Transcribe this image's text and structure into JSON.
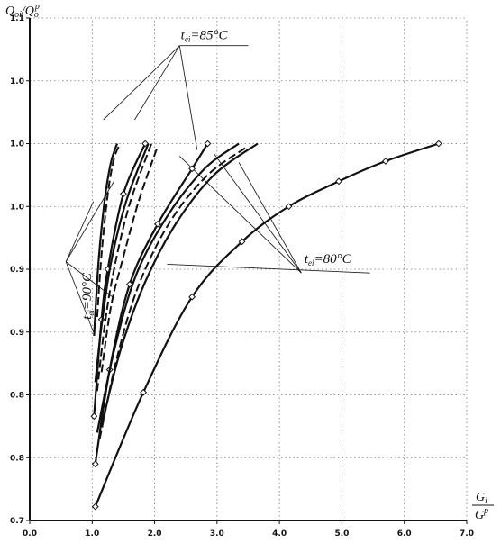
{
  "chart_data": {
    "type": "line",
    "xlabel": {
      "num": "G",
      "num_sub": "i",
      "den": "G",
      "den_sup": "p"
    },
    "ylabel": {
      "num": "Q",
      "num_sub": "oi",
      "den": "Q",
      "den_sub": "o",
      "den_sup": "p"
    },
    "xlim": [
      0,
      7
    ],
    "ylim": [
      0.7,
      1.1
    ],
    "x_ticks": [
      0,
      1,
      2,
      3,
      4,
      5,
      6,
      7
    ],
    "x_tick_labels": [
      "0.0",
      "1.0",
      "2.0",
      "3.0",
      "4.0",
      "5.0",
      "6.0",
      "7.0"
    ],
    "y_ticks": [
      0.7,
      0.75,
      0.8,
      0.85,
      0.9,
      0.95,
      1.0,
      1.05,
      1.1
    ],
    "y_tick_labels": [
      "0.7",
      "0.8",
      "0.8",
      "0.9",
      "0.9",
      "1.0",
      "1.0",
      "1.0",
      "1.1"
    ],
    "grid": true,
    "annotations": [
      {
        "label": "t",
        "sub": "ei",
        "rest": "=85°C",
        "x": 2.42,
        "y": 1.083,
        "rotate": 0
      },
      {
        "label": "t",
        "sub": "ei",
        "rest": "=80°C",
        "x": 4.4,
        "y": 0.905,
        "rotate": 0
      },
      {
        "label": "t",
        "sub": "ei",
        "rest": "=90°C",
        "x": 0.98,
        "y": 0.86,
        "rotate": -90
      }
    ],
    "leaders": [
      {
        "from": [
          2.4,
          1.078
        ],
        "to": [
          3.5,
          1.078
        ]
      },
      {
        "from": [
          2.4,
          1.078
        ],
        "to": [
          1.18,
          1.019
        ]
      },
      {
        "from": [
          2.4,
          1.078
        ],
        "to": [
          1.68,
          1.019
        ]
      },
      {
        "from": [
          2.4,
          1.078
        ],
        "to": [
          2.68,
          0.995
        ]
      },
      {
        "from": [
          0.58,
          0.906
        ],
        "to": [
          1.02,
          0.954
        ]
      },
      {
        "from": [
          0.58,
          0.906
        ],
        "to": [
          1.02,
          0.85
        ]
      },
      {
        "from": [
          0.58,
          0.906
        ],
        "to": [
          1.35,
          0.97
        ]
      },
      {
        "from": [
          0.58,
          0.906
        ],
        "to": [
          1.35,
          0.877
        ]
      },
      {
        "from": [
          2.2,
          0.904
        ],
        "to": [
          5.45,
          0.897
        ]
      },
      {
        "from": [
          4.35,
          0.897
        ],
        "to": [
          2.4,
          0.99
        ]
      },
      {
        "from": [
          4.35,
          0.897
        ],
        "to": [
          2.95,
          0.992
        ]
      },
      {
        "from": [
          4.35,
          0.897
        ],
        "to": [
          3.35,
          0.985
        ]
      }
    ],
    "series": [
      {
        "style": "solid",
        "markers": false,
        "x": [
          1.03,
          1.1,
          1.2,
          1.3,
          1.4
        ],
        "y": [
          0.847,
          0.905,
          0.955,
          0.985,
          1.0
        ]
      },
      {
        "style": "dashed",
        "markers": false,
        "x": [
          1.08,
          1.15,
          1.25,
          1.35,
          1.45
        ],
        "y": [
          0.862,
          0.912,
          0.96,
          0.988,
          1.0
        ]
      },
      {
        "style": "solid",
        "markers": true,
        "x": [
          1.03,
          1.15,
          1.25,
          1.5,
          1.85
        ],
        "y": [
          0.783,
          0.86,
          0.9,
          0.96,
          1.0
        ]
      },
      {
        "style": "solid",
        "markers": false,
        "x": [
          1.05,
          1.15,
          1.3,
          1.55,
          1.9
        ],
        "y": [
          0.81,
          0.855,
          0.905,
          0.955,
          1.0
        ]
      },
      {
        "style": "dashed",
        "markers": false,
        "x": [
          1.08,
          1.2,
          1.35,
          1.6,
          1.95
        ],
        "y": [
          0.803,
          0.855,
          0.9,
          0.952,
          1.0
        ]
      },
      {
        "style": "dashed",
        "markers": false,
        "x": [
          1.15,
          1.3,
          1.5,
          1.75,
          2.05
        ],
        "y": [
          0.818,
          0.87,
          0.91,
          0.955,
          0.998
        ]
      },
      {
        "style": "solid",
        "markers": true,
        "x": [
          1.05,
          1.28,
          1.6,
          2.05,
          2.6,
          2.85
        ],
        "y": [
          0.745,
          0.82,
          0.888,
          0.936,
          0.98,
          1.0
        ]
      },
      {
        "style": "solid",
        "markers": false,
        "x": [
          1.08,
          1.35,
          1.7,
          2.2,
          2.8,
          3.35
        ],
        "y": [
          0.77,
          0.835,
          0.895,
          0.942,
          0.98,
          1.0
        ]
      },
      {
        "style": "dashed",
        "markers": false,
        "x": [
          1.12,
          1.4,
          1.75,
          2.25,
          2.85,
          3.5
        ],
        "y": [
          0.765,
          0.83,
          0.888,
          0.938,
          0.975,
          0.998
        ]
      },
      {
        "style": "solid",
        "markers": false,
        "x": [
          1.15,
          1.45,
          1.85,
          2.35,
          2.95,
          3.65
        ],
        "y": [
          0.775,
          0.835,
          0.89,
          0.937,
          0.975,
          1.0
        ]
      },
      {
        "style": "solid",
        "markers": true,
        "x": [
          1.05,
          1.82,
          2.6,
          3.4,
          4.15,
          4.95,
          5.7,
          6.55
        ],
        "y": [
          0.711,
          0.802,
          0.878,
          0.922,
          0.95,
          0.97,
          0.986,
          1.0
        ]
      }
    ]
  }
}
